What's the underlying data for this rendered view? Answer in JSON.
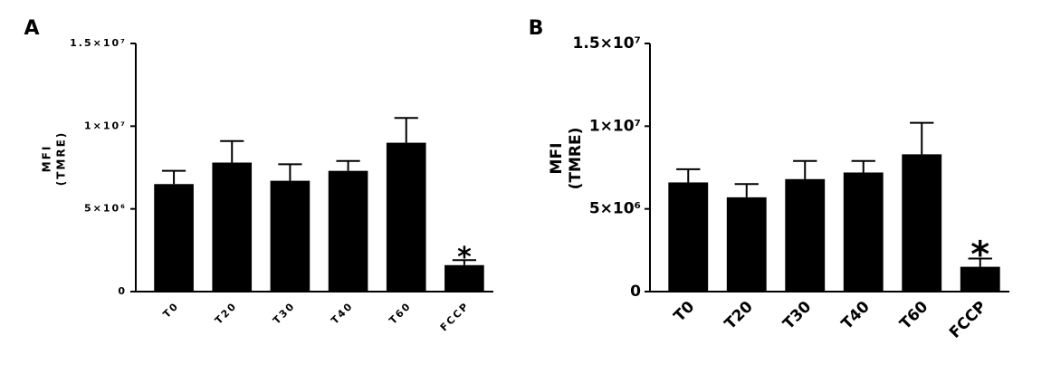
{
  "chart_data": [
    {
      "type": "bar",
      "panel": "A",
      "ylabel": [
        "MFI",
        "(TMRE)"
      ],
      "categories": [
        "T0",
        "T20",
        "T30",
        "T40",
        "T60",
        "FCCP"
      ],
      "values": [
        6500000,
        7800000,
        6700000,
        7300000,
        9000000,
        1600000
      ],
      "errors": [
        800000,
        1300000,
        1000000,
        600000,
        1500000,
        300000
      ],
      "color": "#000000",
      "annotation": "*",
      "ylim": [
        0,
        15000000
      ],
      "yticks": [
        0,
        {
          "value": 5000000,
          "label": "5×10⁶"
        },
        {
          "value": 10000000,
          "label": "1×10⁷"
        },
        {
          "value": 15000000,
          "label": "1.5×10⁷"
        }
      ]
    },
    {
      "type": "bar",
      "panel": "B",
      "ylabel": [
        "MFI",
        "(TMRE)"
      ],
      "categories": [
        "T0",
        "T20",
        "T30",
        "T40",
        "T60",
        "FCCP"
      ],
      "values": [
        6600000,
        5700000,
        6800000,
        7200000,
        8300000,
        1500000
      ],
      "errors": [
        800000,
        800000,
        1100000,
        700000,
        1900000,
        500000
      ],
      "color": "#000000",
      "annotation": "*",
      "ylim": [
        0,
        15000000
      ],
      "yticks": [
        0,
        {
          "value": 5000000,
          "label": "5×10⁶"
        },
        {
          "value": 10000000,
          "label": "1×10⁷"
        },
        {
          "value": 15000000,
          "label": "1.5×10⁷"
        }
      ]
    }
  ]
}
